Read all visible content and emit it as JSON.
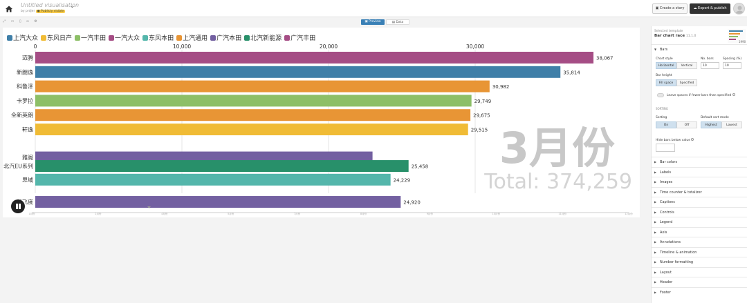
{
  "header": {
    "title": "Untitled visualisation",
    "by_label": "by prdjer",
    "visibility_badge": "Publicly visible",
    "create_story_label": "Create a story",
    "export_label": "Export & publish"
  },
  "toolbar": {
    "preview_label": "Preview",
    "data_label": "Data"
  },
  "chart_data": {
    "type": "bar",
    "subtype": "bar chart race",
    "categories": [
      "迈腾",
      "新朗逸",
      "科鲁泽",
      "卡罗拉",
      "全新英朗",
      "轩逸",
      "雅阁",
      "北汽EU系列",
      "思域",
      "新飞度"
    ],
    "values": [
      38067,
      35814,
      30982,
      29749,
      29675,
      29515,
      23000,
      25458,
      24229,
      24920
    ],
    "value_labels": [
      "38,067",
      "35,814",
      "30,982",
      "29,749",
      "29,675",
      "29,515",
      "",
      "25,458",
      "24,229",
      "24,920"
    ],
    "colors": [
      "#a54d85",
      "#3f7fa8",
      "#e89535",
      "#8dbf67",
      "#e89535",
      "#f0bb35",
      "#7360a1",
      "#28906a",
      "#54b6ab",
      "#7360a1"
    ],
    "xlim": [
      0,
      40000
    ],
    "x_ticks": [
      0,
      10000,
      20000,
      30000
    ],
    "x_tick_labels": [
      "0",
      "10,000",
      "20,000",
      "30,000"
    ],
    "legend": [
      {
        "label": "上汽大众",
        "color": "#3f7fa8"
      },
      {
        "label": "东风日产",
        "color": "#f0bb35"
      },
      {
        "label": "一汽丰田",
        "color": "#8dbf67"
      },
      {
        "label": "一汽大众",
        "color": "#a54d85"
      },
      {
        "label": "东风本田",
        "color": "#54b6ab"
      },
      {
        "label": "上汽通用",
        "color": "#e89535"
      },
      {
        "label": "广汽本田",
        "color": "#7360a1"
      },
      {
        "label": "北汽新能源",
        "color": "#28906a"
      },
      {
        "label": "广汽丰田",
        "color": "#a54d85"
      }
    ],
    "period_label": "3月份",
    "total_label": "Total: 374,259",
    "timeline_ticks": [
      "1月份",
      "2月份",
      "4月份",
      "5月份",
      "7月份",
      "8月份",
      "9月份",
      "10月份",
      "11月份",
      "12月份"
    ]
  },
  "panel": {
    "selected_template_label": "Selected template",
    "template_name": "Bar chart race",
    "template_version": "11.1.0",
    "thumb_label": "1990",
    "bars_section": "Bars",
    "chart_style_label": "Chart style",
    "chart_style_options": [
      "Horizontal",
      "Vertical"
    ],
    "no_bars_label": "No. bars",
    "no_bars_value": "10",
    "spacing_label": "Spacing (%)",
    "spacing_value": "10",
    "bar_height_label": "Bar height",
    "bar_height_options": [
      "Fill space",
      "Specified"
    ],
    "leave_spaces_label": "Leave spaces if fewer bars than specified",
    "sorting_heading": "SORTING",
    "sorting_label": "Sorting",
    "sorting_options": [
      "On",
      "Off"
    ],
    "default_sort_label": "Default sort mode",
    "default_sort_options": [
      "Highest",
      "Lowest"
    ],
    "hide_bars_label": "Hide bars below value",
    "sections": [
      "Bar colors",
      "Labels",
      "Images",
      "Time counter & totalizer",
      "Captions",
      "Controls",
      "Legend",
      "Axis",
      "Annotations",
      "Timeline & animation",
      "Number formatting",
      "Layout",
      "Header",
      "Footer"
    ]
  },
  "icons": {
    "home": "home-icon",
    "play_pause": "pause-icon",
    "chevron": "chevron-down-icon"
  }
}
